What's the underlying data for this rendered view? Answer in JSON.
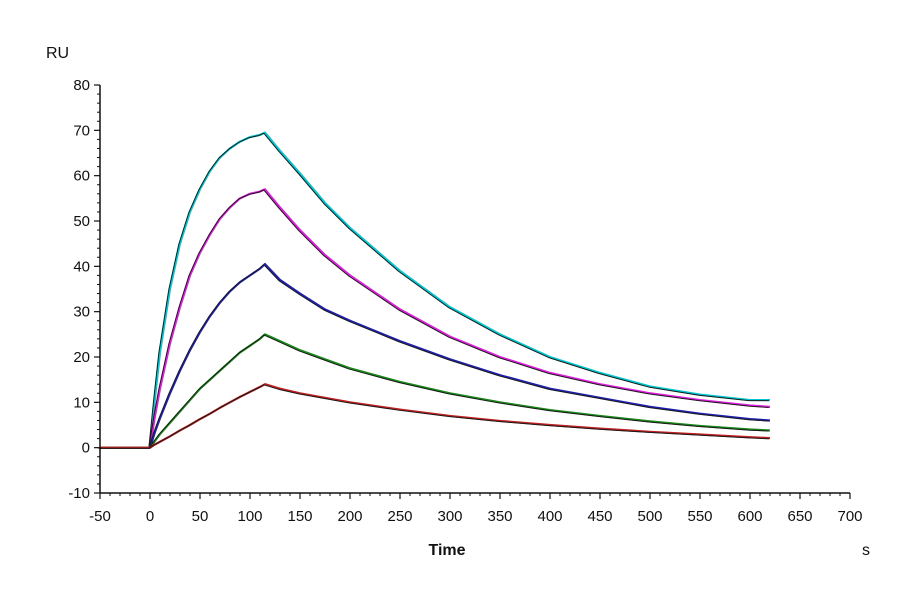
{
  "chart_data": {
    "type": "line",
    "title": "",
    "xlabel": "Time",
    "ylabel": "RU",
    "xunit": "s",
    "xlim": [
      -50,
      700
    ],
    "ylim": [
      -10,
      80
    ],
    "x_ticks": [
      -50,
      0,
      50,
      100,
      150,
      200,
      250,
      300,
      350,
      400,
      450,
      500,
      550,
      600,
      650,
      700
    ],
    "y_ticks": [
      -10,
      0,
      10,
      20,
      30,
      40,
      50,
      60,
      70,
      80
    ],
    "grid": false,
    "legend": "none",
    "association_end": 115,
    "series": [
      {
        "color": "#00c8d2",
        "x": [
          -50,
          0,
          5,
          10,
          20,
          30,
          40,
          50,
          60,
          70,
          80,
          90,
          100,
          110,
          115,
          130,
          150,
          175,
          200,
          250,
          300,
          350,
          400,
          450,
          500,
          550,
          600,
          620
        ],
        "y": [
          0,
          0,
          11,
          21,
          35,
          45,
          52,
          57,
          61,
          64,
          66,
          67.5,
          68.5,
          69,
          69.5,
          65.5,
          60.5,
          54,
          48.5,
          39,
          31,
          25,
          20,
          16.5,
          13.5,
          11.7,
          10.5,
          10.5
        ]
      },
      {
        "color": "#e020e0",
        "x": [
          -50,
          0,
          5,
          10,
          20,
          30,
          40,
          50,
          60,
          70,
          80,
          90,
          100,
          110,
          115,
          130,
          150,
          175,
          200,
          250,
          300,
          350,
          400,
          450,
          500,
          550,
          600,
          620
        ],
        "y": [
          0,
          0,
          7,
          13,
          23,
          31,
          38,
          43,
          47,
          50.5,
          53,
          55,
          56,
          56.5,
          57,
          53,
          48,
          42.5,
          38,
          30.5,
          24.5,
          20,
          16.5,
          14,
          12,
          10.5,
          9.3,
          9
        ]
      },
      {
        "color": "#2020b0",
        "x": [
          -50,
          0,
          5,
          10,
          20,
          30,
          40,
          50,
          60,
          70,
          80,
          90,
          100,
          110,
          115,
          130,
          150,
          175,
          200,
          250,
          300,
          350,
          400,
          450,
          500,
          550,
          600,
          620
        ],
        "y": [
          0,
          0,
          3.5,
          6.5,
          12,
          17,
          21.5,
          25.5,
          29,
          32,
          34.5,
          36.5,
          38,
          39.5,
          40.5,
          37,
          34,
          30.5,
          28,
          23.5,
          19.5,
          16,
          13,
          11,
          9,
          7.5,
          6.3,
          6
        ]
      },
      {
        "color": "#1a8a1a",
        "x": [
          -50,
          0,
          5,
          10,
          20,
          30,
          40,
          50,
          60,
          70,
          80,
          90,
          100,
          110,
          115,
          130,
          150,
          175,
          200,
          250,
          300,
          350,
          400,
          450,
          500,
          550,
          600,
          620
        ],
        "y": [
          0,
          0,
          1.5,
          3,
          5.5,
          8,
          10.5,
          13,
          15,
          17,
          19,
          21,
          22.5,
          24,
          25,
          23.5,
          21.5,
          19.5,
          17.5,
          14.5,
          12,
          10,
          8.3,
          7,
          5.8,
          4.8,
          4,
          3.8
        ]
      },
      {
        "color": "#c02020",
        "x": [
          -50,
          0,
          5,
          10,
          20,
          30,
          40,
          50,
          60,
          70,
          80,
          90,
          100,
          110,
          115,
          130,
          150,
          175,
          200,
          250,
          300,
          350,
          400,
          450,
          500,
          550,
          600,
          620
        ],
        "y": [
          0,
          0,
          0.7,
          1.3,
          2.5,
          3.8,
          5,
          6.3,
          7.5,
          8.8,
          10,
          11.2,
          12.3,
          13.4,
          14,
          13,
          12,
          11,
          10,
          8.4,
          7,
          5.9,
          5,
          4.2,
          3.5,
          2.9,
          2.3,
          2.1
        ]
      }
    ]
  }
}
